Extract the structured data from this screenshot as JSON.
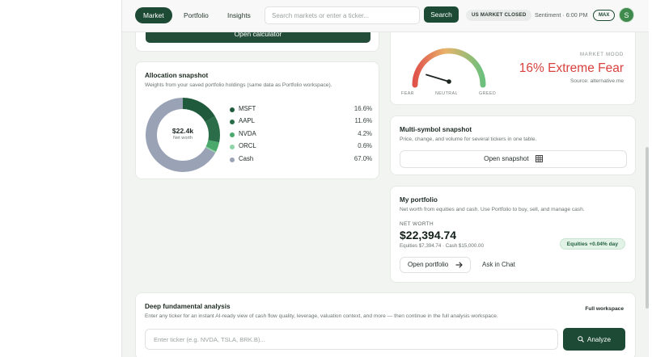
{
  "nav": {
    "tabs": [
      {
        "label": "Market",
        "active": true
      },
      {
        "label": "Portfolio",
        "active": false
      },
      {
        "label": "Insights",
        "active": false
      }
    ],
    "search_placeholder": "Search markets or enter a ticker...",
    "search_button": "Search",
    "market_status": "US MARKET CLOSED",
    "sentiment": "Sentiment · 6:00 PM",
    "max_badge": "MAX",
    "avatar_initial": "S"
  },
  "calculator": {
    "button": "Open calculator"
  },
  "allocation": {
    "title": "Allocation snapshot",
    "subtitle": "Weights from your saved portfolio holdings (same data as Portfolio workspace).",
    "center_value": "$22.4k",
    "center_label": "Net worth",
    "items": [
      {
        "symbol": "MSFT",
        "pct_label": "16.6%",
        "pct": 16.6,
        "color": "#1f5a3c"
      },
      {
        "symbol": "AAPL",
        "pct_label": "11.6%",
        "pct": 11.6,
        "color": "#2a6d48"
      },
      {
        "symbol": "NVDA",
        "pct_label": "4.2%",
        "pct": 4.2,
        "color": "#4aa96b"
      },
      {
        "symbol": "ORCL",
        "pct_label": "0.6%",
        "pct": 0.6,
        "color": "#8fd3a6"
      },
      {
        "symbol": "Cash",
        "pct_label": "67.0%",
        "pct": 67.0,
        "color": "#9aa3b5"
      }
    ]
  },
  "mood": {
    "fear_label": "FEAR",
    "neutral_label": "NEUTRAL",
    "greed_label": "GREED",
    "heading": "MARKET MOOD",
    "value_text": "16% Extreme Fear",
    "value": 16,
    "source": "Source: alternative.me"
  },
  "snapshot": {
    "title": "Multi-symbol snapshot",
    "subtitle": "Price, change, and volume for several tickers in one table.",
    "button": "Open snapshot"
  },
  "portfolio": {
    "title": "My portfolio",
    "subtitle": "Net worth from equities and cash. Use Portfolio to buy, sell, and manage cash.",
    "net_worth_label": "NET WORTH",
    "net_worth": "$22,394.74",
    "detail": "Equities $7,394.74 · Cash $15,000.00",
    "day_change": "Equities +0.04% day",
    "open_button": "Open portfolio",
    "ask_chat": "Ask in Chat"
  },
  "deep_analysis": {
    "title": "Deep fundamental analysis",
    "subtitle": "Enter any ticker for an instant AI-ready view of cash flow quality, leverage, valuation context, and more — then continue in the full analysis workspace.",
    "full_workspace": "Full workspace",
    "input_placeholder": "Enter ticker (e.g. NVDA, TSLA, BRK.B)...",
    "analyze_button": "Analyze"
  }
}
